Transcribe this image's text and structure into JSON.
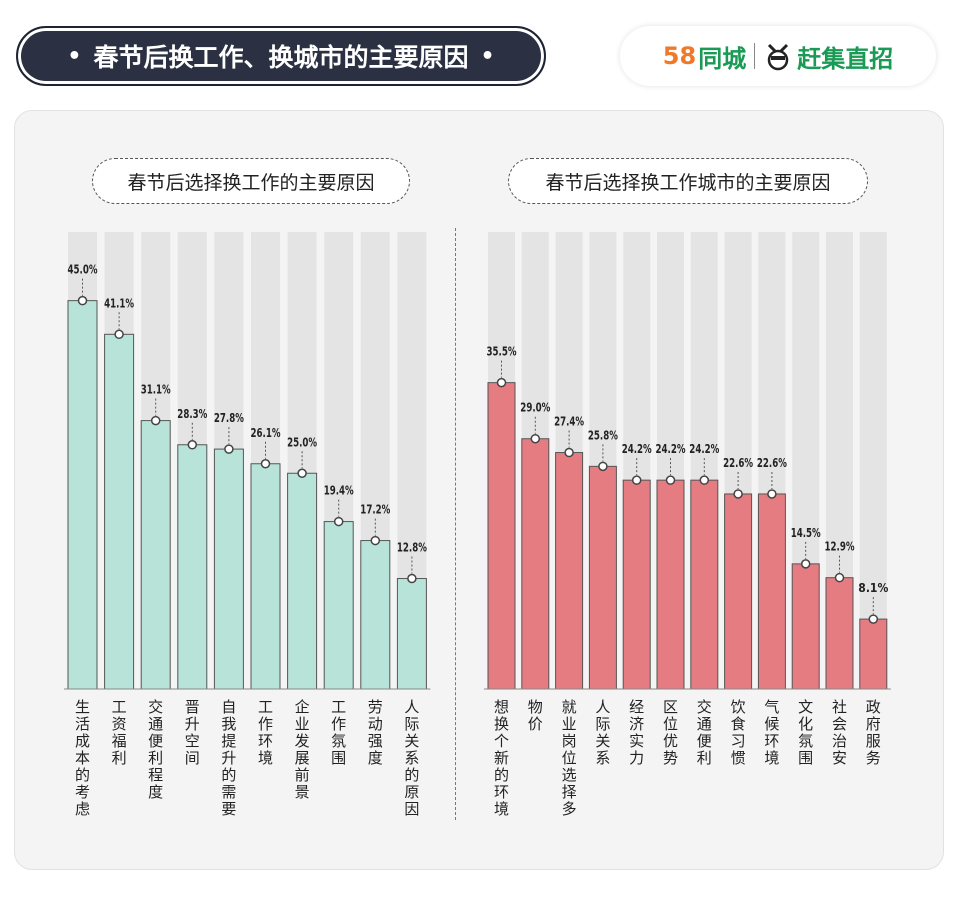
{
  "header": {
    "title": "春节后换工作、换城市的主要原因",
    "logo_58": "58",
    "logo_tongcheng": "同城",
    "logo_ganji": "赶集直招"
  },
  "colors": {
    "left_bar": "#b8e3d9",
    "right_bar": "#e57c82",
    "track": "#e4e4e4"
  },
  "chart_data": [
    {
      "type": "bar",
      "title": "春节后选择换工作的主要原因",
      "categories": [
        "生活成本的考虑",
        "工资福利",
        "交通便利程度",
        "晋升空间",
        "自我提升的需要",
        "工作环境",
        "企业发展前景",
        "工作氛围",
        "劳动强度",
        "人际关系的原因"
      ],
      "values": [
        45.0,
        41.1,
        31.1,
        28.3,
        27.8,
        26.1,
        25.0,
        19.4,
        17.2,
        12.8
      ],
      "labels": [
        "45.0%",
        "41.1%",
        "31.1%",
        "28.3%",
        "27.8%",
        "26.1%",
        "25.0%",
        "19.4%",
        "17.2%",
        "12.8%"
      ],
      "ylim": [
        0,
        50
      ],
      "grid": false
    },
    {
      "type": "bar",
      "title": "春节后选择换工作城市的主要原因",
      "categories": [
        "想换个新的环境",
        "物价",
        "就业岗位选择多",
        "人际关系",
        "经济实力",
        "区位优势",
        "交通便利",
        "饮食习惯",
        "气候环境",
        "文化氛围",
        "社会治安",
        "政府服务"
      ],
      "values": [
        35.5,
        29.0,
        27.4,
        25.8,
        24.2,
        24.2,
        24.2,
        22.6,
        22.6,
        14.5,
        12.9,
        8.1
      ],
      "labels": [
        "35.5%",
        "29.0%",
        "27.4%",
        "25.8%",
        "24.2%",
        "24.2%",
        "24.2%",
        "22.6%",
        "22.6%",
        "14.5%",
        "12.9%",
        "8.1%"
      ],
      "ylim": [
        0,
        40
      ],
      "grid": false
    }
  ]
}
